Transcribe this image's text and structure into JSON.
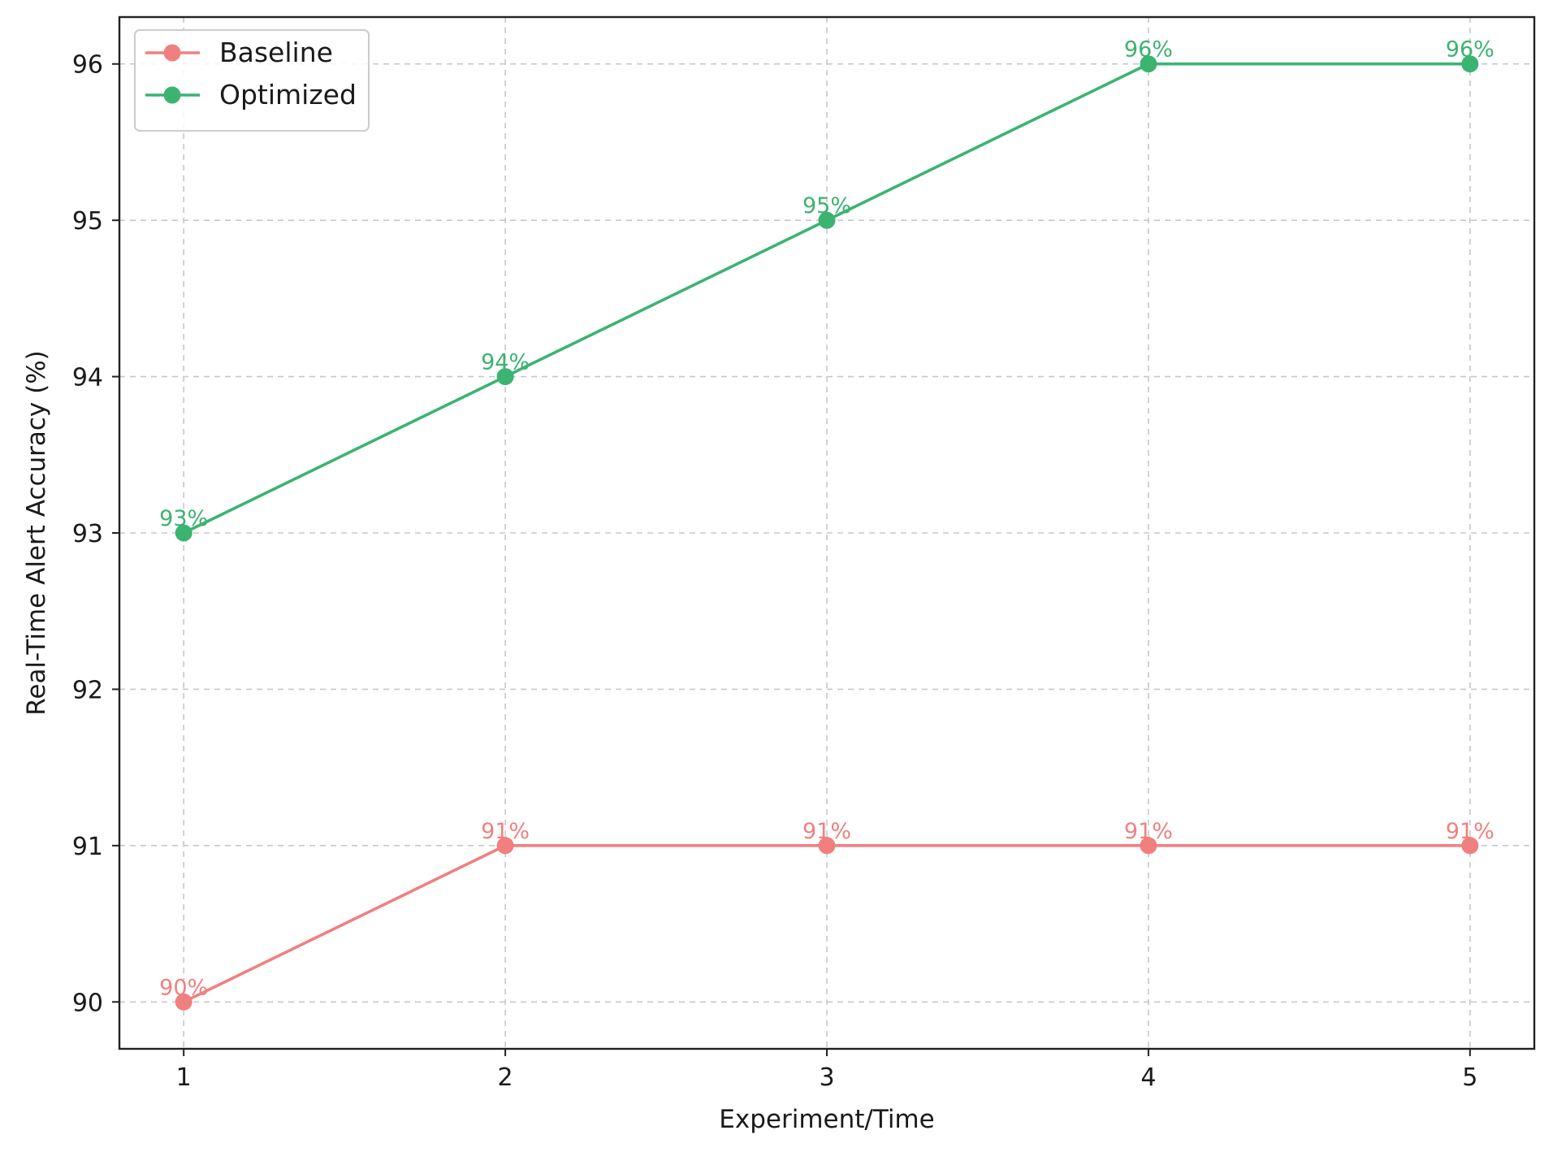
{
  "chart_data": {
    "type": "line",
    "x": [
      1,
      2,
      3,
      4,
      5
    ],
    "xlabel": "Experiment/Time",
    "ylabel": "Real-Time Alert Accuracy (%)",
    "xlim": [
      0.8,
      5.2
    ],
    "ylim": [
      89.7,
      96.3
    ],
    "xticks": [
      1,
      2,
      3,
      4,
      5
    ],
    "yticks": [
      90,
      91,
      92,
      93,
      94,
      95,
      96
    ],
    "grid": true,
    "legend_position": "top-left",
    "series": [
      {
        "name": "Baseline",
        "color": "#f08080",
        "values": [
          90,
          91,
          91,
          91,
          91
        ],
        "labels": [
          "90%",
          "91%",
          "91%",
          "91%",
          "91%"
        ]
      },
      {
        "name": "Optimized",
        "color": "#3cb371",
        "values": [
          93,
          94,
          95,
          96,
          96
        ],
        "labels": [
          "93%",
          "94%",
          "95%",
          "96%",
          "96%"
        ]
      }
    ]
  }
}
